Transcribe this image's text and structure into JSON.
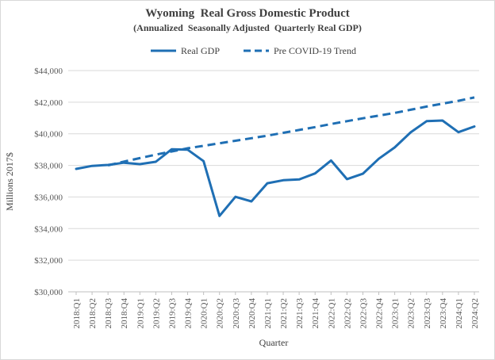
{
  "chart_data": {
    "type": "line",
    "title": "Wyoming  Real Gross Domestic Product",
    "subtitle": "(Annualized  Seasonally Adjusted  Quarterly Real GDP)",
    "xlabel": "Quarter",
    "ylabel": "Millions 2017$",
    "ylim": [
      30000,
      44000
    ],
    "y_ticks": [
      "$30,000",
      "$32,000",
      "$34,000",
      "$36,000",
      "$38,000",
      "$40,000",
      "$42,000",
      "$44,000"
    ],
    "y_tick_values": [
      30000,
      32000,
      34000,
      36000,
      38000,
      40000,
      42000,
      44000
    ],
    "grid": true,
    "legend_position": "top",
    "categories": [
      "2018:Q1",
      "2018:Q2",
      "2018:Q3",
      "2018:Q4",
      "2019:Q1",
      "2019:Q2",
      "2019:Q3",
      "2019:Q4",
      "2020:Q1",
      "2020:Q2",
      "2020:Q3",
      "2020:Q4",
      "2021:Q1",
      "2021:Q2",
      "2021:Q3",
      "2021:Q4",
      "2022:Q1",
      "2022:Q2",
      "2022:Q3",
      "2022:Q4",
      "2023:Q1",
      "2023:Q2",
      "2023:Q3",
      "2023:Q4",
      "2024:Q1",
      "2024:Q2"
    ],
    "series": [
      {
        "name": "Real GDP",
        "style": "solid",
        "color": "#1f6fb4",
        "values": [
          37780,
          37970,
          38030,
          38170,
          38080,
          38230,
          39020,
          38990,
          38270,
          34800,
          36010,
          35720,
          36870,
          37060,
          37110,
          37490,
          38310,
          37130,
          37470,
          38420,
          39140,
          40090,
          40800,
          40840,
          40100,
          40460
        ]
      },
      {
        "name": "Pre COVID-19 Trend",
        "style": "dashed",
        "color": "#1f6fb4",
        "values": [
          null,
          null,
          38000,
          38240,
          38460,
          38680,
          38880,
          39080,
          39240,
          39400,
          39560,
          39720,
          39880,
          40060,
          40240,
          40420,
          40620,
          40800,
          40980,
          41150,
          41320,
          41520,
          41720,
          41910,
          42090,
          42300
        ]
      }
    ]
  }
}
